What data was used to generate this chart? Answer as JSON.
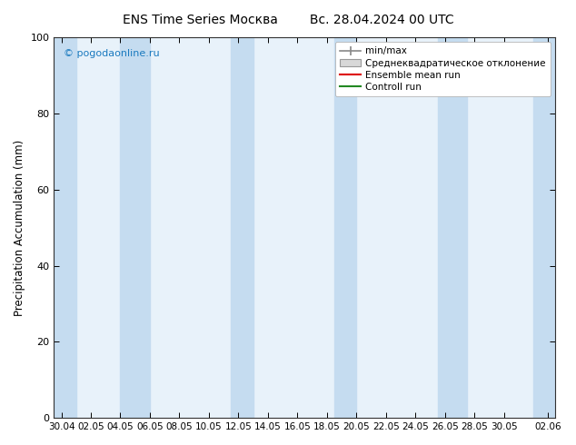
{
  "title": "ENS Time Series Москва",
  "title2": "Вс. 28.04.2024 00 UTC",
  "ylabel": "Precipitation Accumulation (mm)",
  "ylim": [
    0,
    100
  ],
  "background_color": "#ffffff",
  "plot_bg_color": "#e8f2fa",
  "watermark": "© pogodaonline.ru",
  "watermark_color": "#1a7abf",
  "legend_entries": [
    "min/max",
    "Среднеквадратическое отклонение",
    "Ensemble mean run",
    "Controll run"
  ],
  "band_color": "#c5dcf0",
  "band_edge_color": "#b0cce0",
  "x_tick_labels": [
    "30.04",
    "02.05",
    "04.05",
    "06.05",
    "08.05",
    "10.05",
    "12.05",
    "14.05",
    "16.05",
    "18.05",
    "20.05",
    "22.05",
    "24.05",
    "26.05",
    "28.05",
    "30.05",
    "02.06"
  ],
  "x_tick_positions": [
    0,
    2,
    4,
    6,
    8,
    10,
    12,
    14,
    16,
    18,
    20,
    22,
    24,
    26,
    28,
    30,
    33
  ],
  "band_positions": [
    [
      -0.5,
      1.0
    ],
    [
      4.0,
      6.0
    ],
    [
      11.5,
      13.0
    ],
    [
      18.5,
      20.0
    ],
    [
      25.5,
      27.5
    ],
    [
      32.0,
      33.5
    ]
  ],
  "yticks": [
    0,
    20,
    40,
    60,
    80,
    100
  ],
  "xlim": [
    -0.5,
    33.5
  ]
}
